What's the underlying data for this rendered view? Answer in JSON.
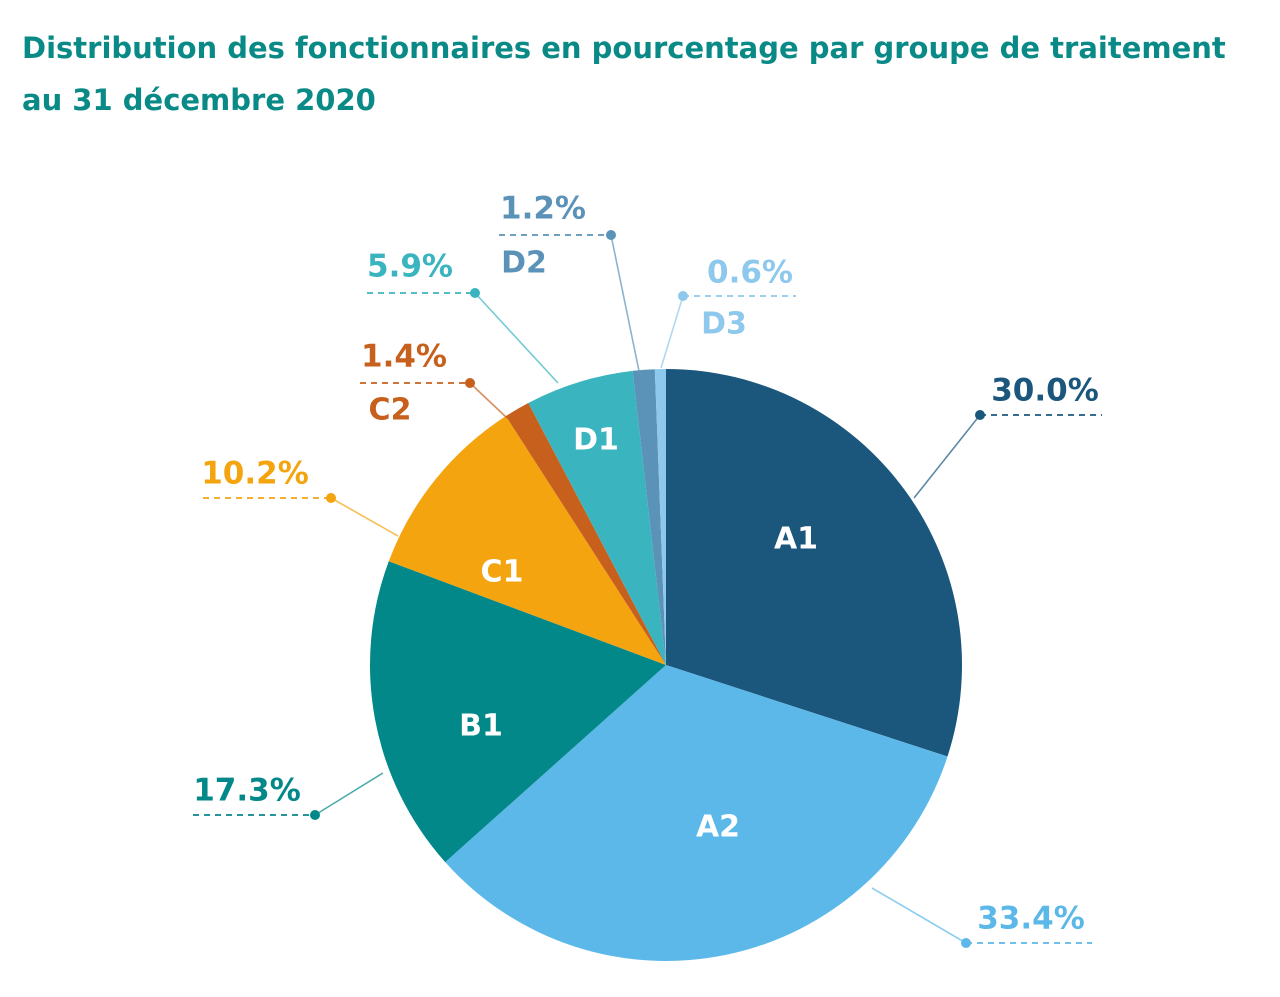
{
  "chart_data": {
    "type": "pie",
    "title": [
      "Distribution des fonctionnaires en pourcentage par groupe de traitement",
      "au 31 décembre 2020"
    ],
    "slices": [
      {
        "label": "A1",
        "value": 30.0,
        "value_label": "30.0%",
        "color": "#1b577d",
        "label_color": "#ffffff",
        "callout_color": "#1b577d"
      },
      {
        "label": "A2",
        "value": 33.4,
        "value_label": "33.4%",
        "color": "#5cb8e8",
        "label_color": "#ffffff",
        "callout_color": "#5cb8e8"
      },
      {
        "label": "B1",
        "value": 17.3,
        "value_label": "17.3%",
        "color": "#03888a",
        "label_color": "#ffffff",
        "callout_color": "#03888a"
      },
      {
        "label": "C1",
        "value": 10.2,
        "value_label": "10.2%",
        "color": "#f4a40f",
        "label_color": "#ffffff",
        "callout_color": "#f4a40f"
      },
      {
        "label": "C2",
        "value": 1.4,
        "value_label": "1.4%",
        "color": "#c7601c",
        "label_color": "#c7601c",
        "callout_color": "#c7601c"
      },
      {
        "label": "D1",
        "value": 5.9,
        "value_label": "5.9%",
        "color": "#3ab5c0",
        "label_color": "#ffffff",
        "callout_color": "#3ab5c0"
      },
      {
        "label": "D2",
        "value": 1.2,
        "value_label": "1.2%",
        "color": "#5b93b8",
        "label_color": "#5b93b8",
        "callout_color": "#5b93b8"
      },
      {
        "label": "D3",
        "value": 0.6,
        "value_label": "0.6%",
        "color": "#8ec8ec",
        "label_color": "#8ec8ec",
        "callout_color": "#8ec8ec"
      }
    ]
  }
}
